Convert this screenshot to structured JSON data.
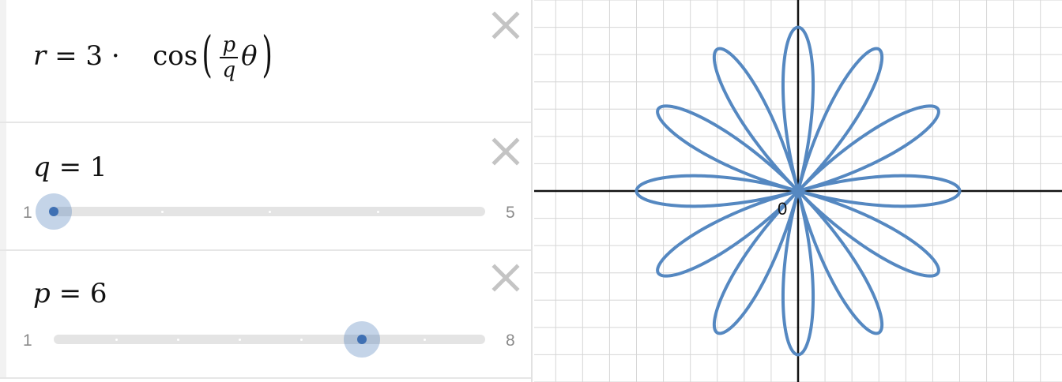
{
  "expressions": [
    {
      "type": "equation",
      "lhs": "r",
      "coefficient": "3",
      "operator": "·",
      "function": "cos",
      "fraction_numerator": "p",
      "fraction_denominator": "q",
      "variable": "θ"
    },
    {
      "type": "slider",
      "variable": "q",
      "value": "1",
      "value_numeric": 1,
      "min": "1",
      "max": "5",
      "min_numeric": 1,
      "max_numeric": 5
    },
    {
      "type": "slider",
      "variable": "p",
      "value": "6",
      "value_numeric": 6,
      "min": "1",
      "max": "8",
      "min_numeric": 1,
      "max_numeric": 8
    }
  ],
  "graph": {
    "origin_label": "0",
    "curve_color": "#5588c1",
    "grid_color": "#d6d6d6",
    "axis_color": "#111111",
    "x_range": [
      -4.9,
      4.9
    ],
    "y_range": [
      -3.5,
      3.5
    ],
    "grid_step": 0.5
  },
  "colors": {
    "slider_accent": "#3f70b3",
    "delete_icon": "#c4c4c4"
  }
}
